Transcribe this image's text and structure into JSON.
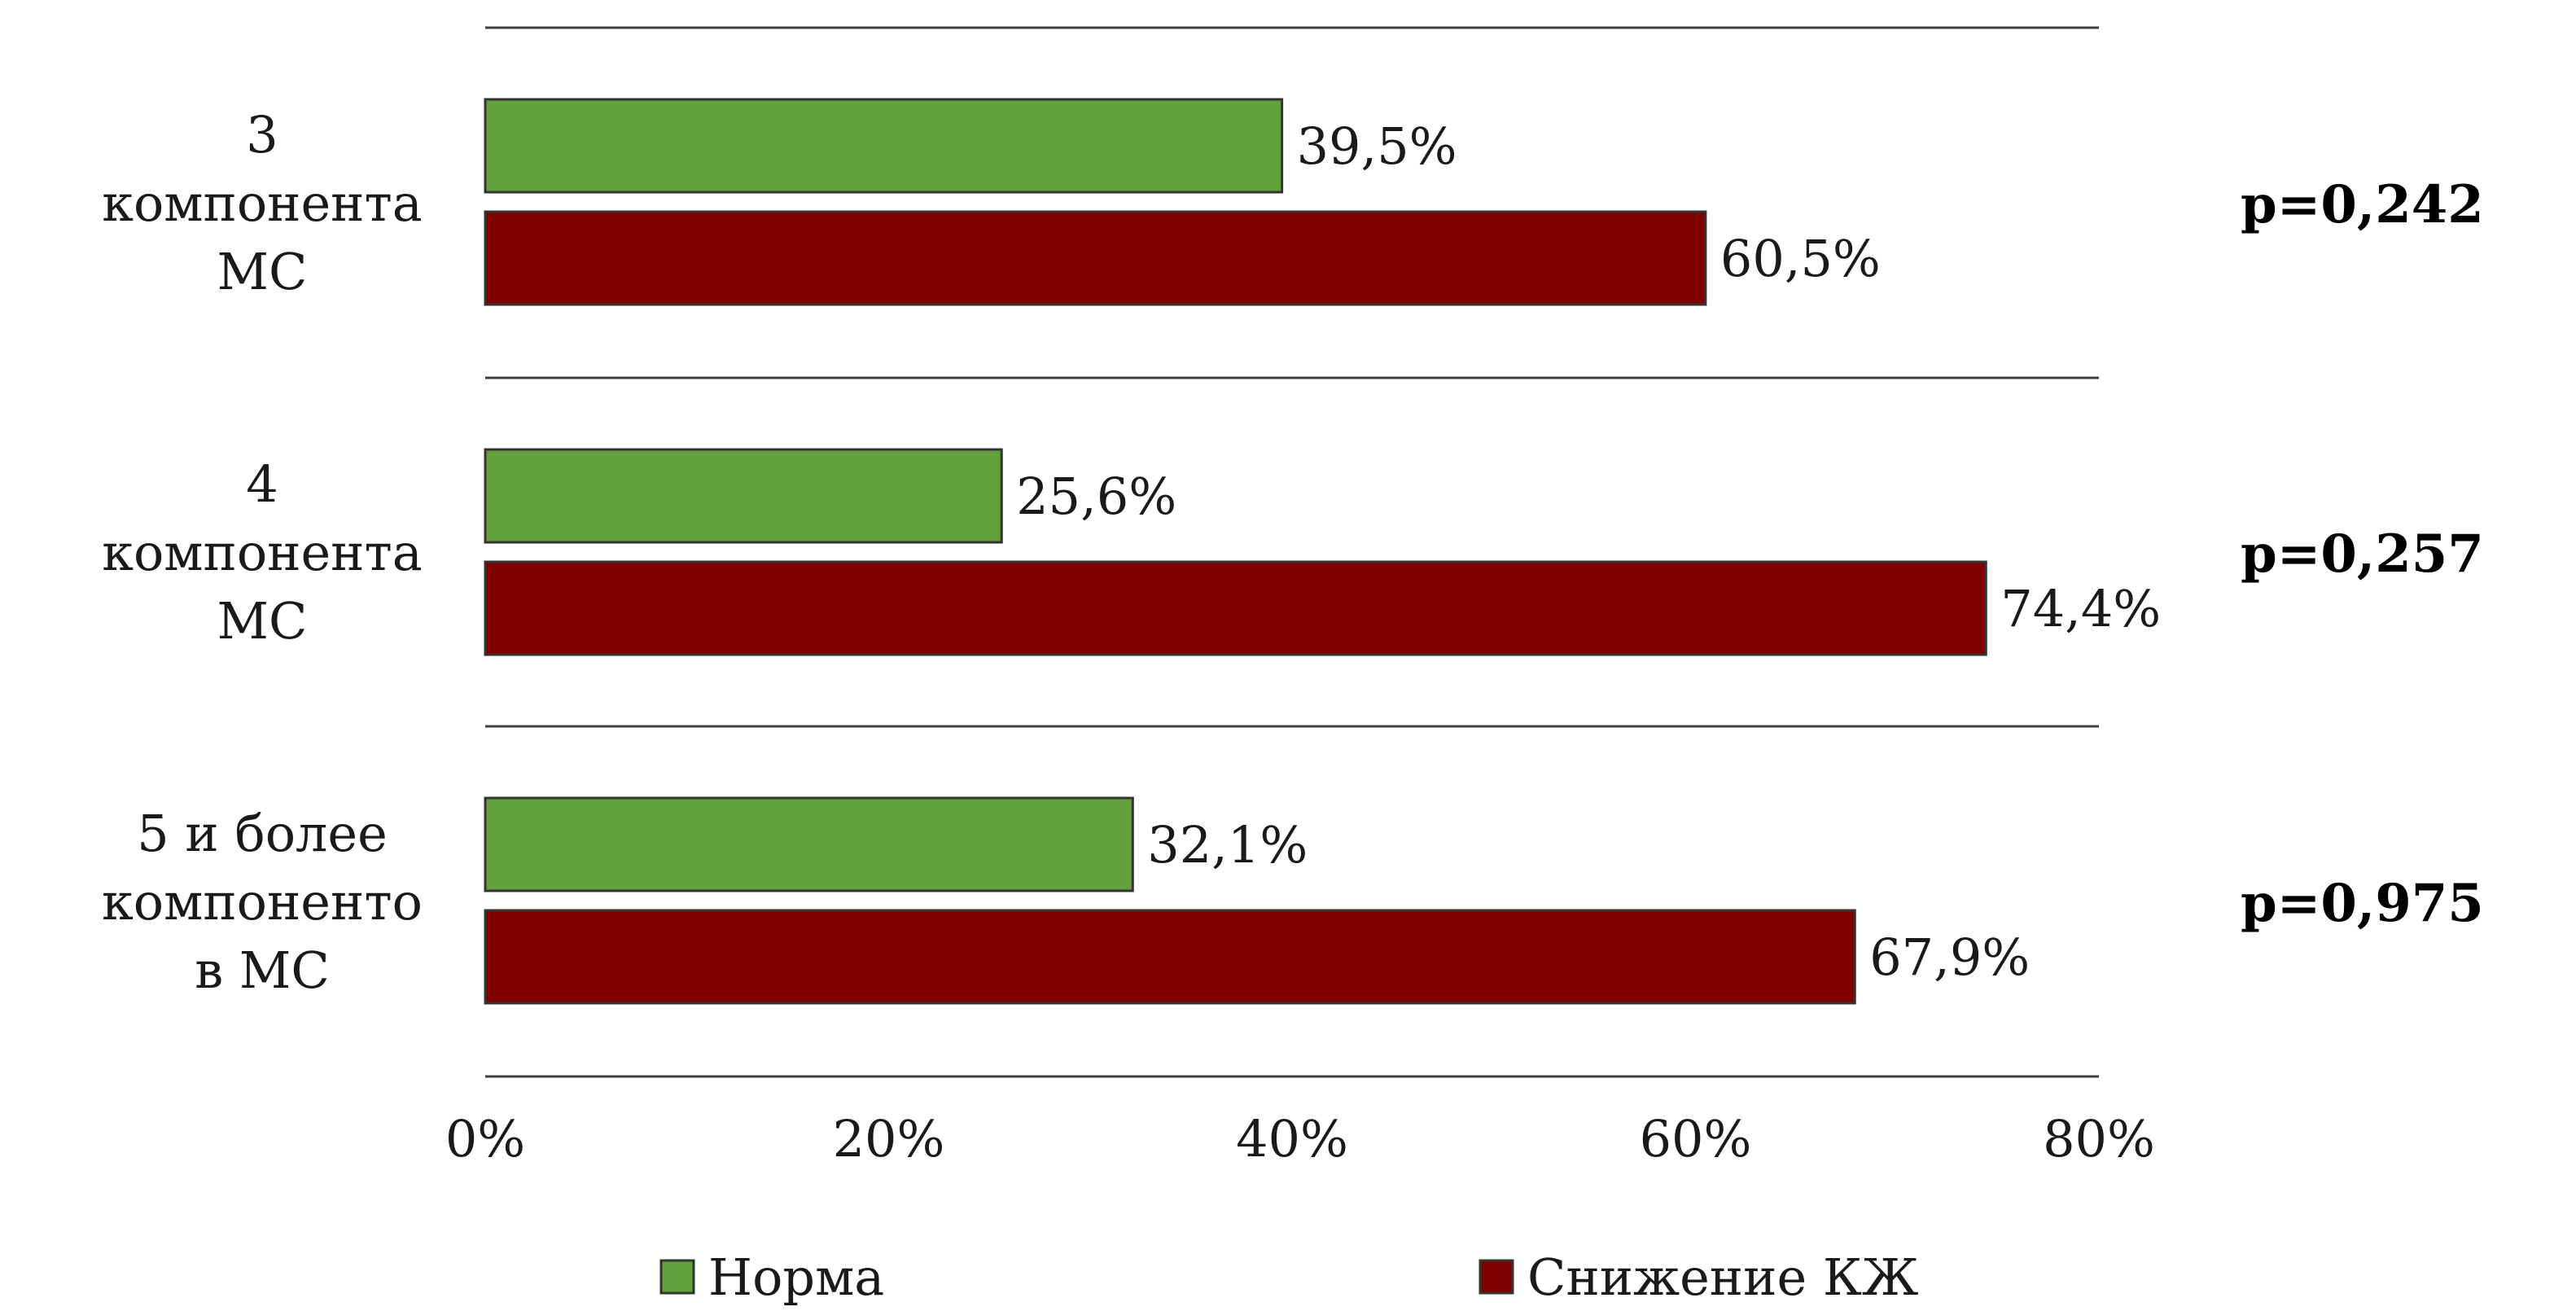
{
  "chart_data": {
    "type": "bar",
    "orientation": "horizontal",
    "categories": [
      [
        "3",
        "компонента",
        "МС"
      ],
      [
        "4",
        "компонента",
        "МС"
      ],
      [
        "5 и более",
        "компоненто",
        "в МС"
      ]
    ],
    "series": [
      {
        "name": "Норма",
        "color": "#63A03E",
        "values": [
          39.5,
          25.6,
          32.1
        ],
        "labels": [
          "39,5%",
          "25,6%",
          "32,1%"
        ]
      },
      {
        "name": "Снижение КЖ",
        "color": "#800000",
        "values": [
          60.5,
          74.4,
          67.9
        ],
        "labels": [
          "60,5%",
          "74,4%",
          "67,9%"
        ]
      }
    ],
    "p_values": [
      "p=0,242",
      "p=0,257",
      "p=0,975"
    ],
    "xlim": [
      0,
      80
    ],
    "xticks": [
      0,
      20,
      40,
      60,
      80
    ],
    "xtick_labels": [
      "0%",
      "20%",
      "40%",
      "60%",
      "80%"
    ],
    "grid": "horizontal separators between categories",
    "legend_position": "bottom"
  }
}
